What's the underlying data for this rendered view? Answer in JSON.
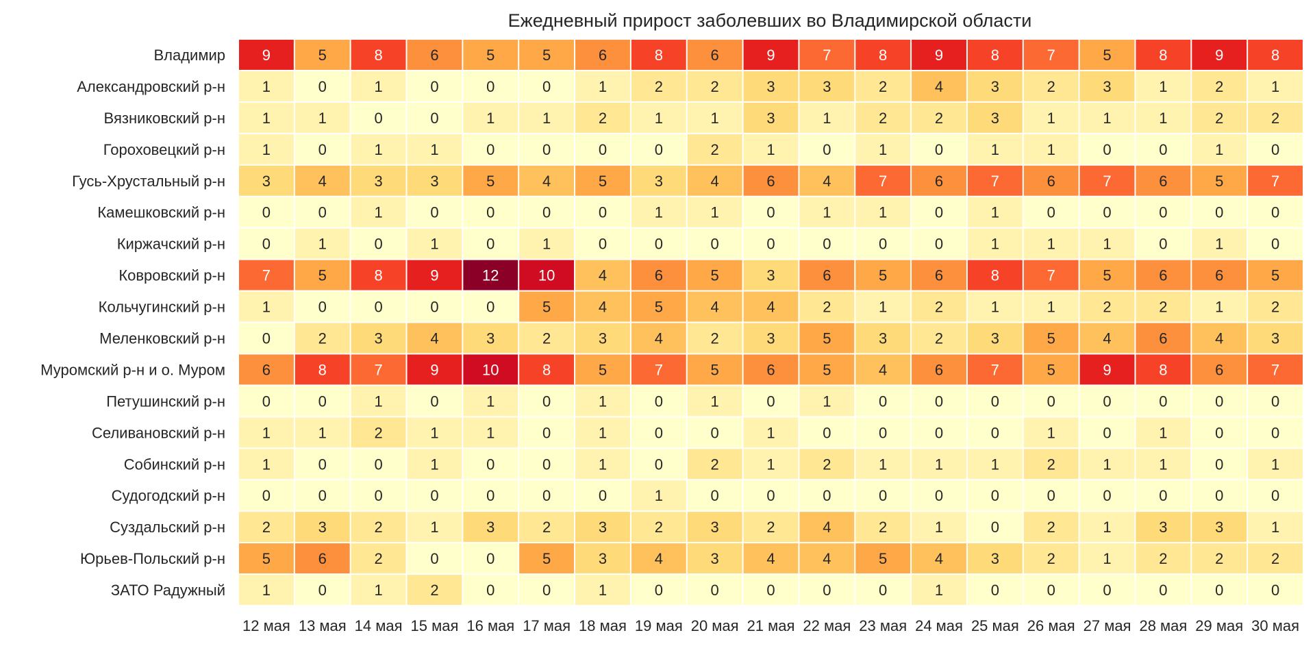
{
  "chart_data": {
    "type": "heatmap",
    "title": "Ежедневный прирост заболевших во Владимирской области",
    "rows": [
      "Владимир",
      "Александровский р-н",
      "Вязниковский р-н",
      "Гороховецкий р-н",
      "Гусь-Хрустальный р-н",
      "Камешковский р-н",
      "Киржачский р-н",
      "Ковровский р-н",
      "Кольчугинский р-н",
      "Меленковский р-н",
      "Муромский р-н и о. Муром",
      "Петушинский р-н",
      "Селивановский р-н",
      "Собинский р-н",
      "Судогодский р-н",
      "Суздальский р-н",
      "Юрьев-Польский р-н",
      "ЗАТО Радужный"
    ],
    "columns": [
      "12 мая",
      "13 мая",
      "14 мая",
      "15 мая",
      "16 мая",
      "17 мая",
      "18 мая",
      "19 мая",
      "20 мая",
      "21 мая",
      "22 мая",
      "23 мая",
      "24 мая",
      "25 мая",
      "26 мая",
      "27 мая",
      "28 мая",
      "29 мая",
      "30 мая"
    ],
    "values": [
      [
        9,
        5,
        8,
        6,
        5,
        5,
        6,
        8,
        6,
        9,
        7,
        8,
        9,
        8,
        7,
        5,
        8,
        9,
        8
      ],
      [
        1,
        0,
        1,
        0,
        0,
        0,
        1,
        2,
        2,
        3,
        3,
        2,
        4,
        3,
        2,
        3,
        1,
        2,
        1
      ],
      [
        1,
        1,
        0,
        0,
        1,
        1,
        2,
        1,
        1,
        3,
        1,
        2,
        2,
        3,
        1,
        1,
        1,
        2,
        2
      ],
      [
        1,
        0,
        1,
        1,
        0,
        0,
        0,
        0,
        2,
        1,
        0,
        1,
        0,
        1,
        1,
        0,
        0,
        1,
        0
      ],
      [
        3,
        4,
        3,
        3,
        5,
        4,
        5,
        3,
        4,
        6,
        4,
        7,
        6,
        7,
        6,
        7,
        6,
        5,
        7
      ],
      [
        0,
        0,
        1,
        0,
        0,
        0,
        0,
        1,
        1,
        0,
        1,
        1,
        0,
        1,
        0,
        0,
        0,
        0,
        0
      ],
      [
        0,
        1,
        0,
        1,
        0,
        1,
        0,
        0,
        0,
        0,
        0,
        0,
        0,
        1,
        1,
        1,
        0,
        1,
        0
      ],
      [
        7,
        5,
        8,
        9,
        12,
        10,
        4,
        6,
        5,
        3,
        6,
        5,
        6,
        8,
        7,
        5,
        6,
        6,
        5
      ],
      [
        1,
        0,
        0,
        0,
        0,
        5,
        4,
        5,
        4,
        4,
        2,
        1,
        2,
        1,
        1,
        2,
        2,
        1,
        2
      ],
      [
        0,
        2,
        3,
        4,
        3,
        2,
        3,
        4,
        2,
        3,
        5,
        3,
        2,
        3,
        5,
        4,
        6,
        4,
        3
      ],
      [
        6,
        8,
        7,
        9,
        10,
        8,
        5,
        7,
        5,
        6,
        5,
        4,
        6,
        7,
        5,
        9,
        8,
        6,
        7
      ],
      [
        0,
        0,
        1,
        0,
        1,
        0,
        1,
        0,
        1,
        0,
        1,
        0,
        0,
        0,
        0,
        0,
        0,
        0,
        0
      ],
      [
        1,
        1,
        2,
        1,
        1,
        0,
        1,
        0,
        0,
        1,
        0,
        0,
        0,
        0,
        1,
        0,
        1,
        0,
        0
      ],
      [
        1,
        0,
        0,
        1,
        0,
        0,
        1,
        0,
        2,
        1,
        2,
        1,
        1,
        1,
        2,
        1,
        1,
        0,
        1
      ],
      [
        0,
        0,
        0,
        0,
        0,
        0,
        0,
        1,
        0,
        0,
        0,
        0,
        0,
        0,
        0,
        0,
        0,
        0,
        0
      ],
      [
        2,
        3,
        2,
        1,
        3,
        2,
        3,
        2,
        3,
        2,
        4,
        2,
        1,
        0,
        2,
        1,
        3,
        3,
        1
      ],
      [
        5,
        6,
        2,
        0,
        0,
        5,
        3,
        4,
        3,
        4,
        4,
        5,
        4,
        3,
        2,
        1,
        2,
        2,
        2
      ],
      [
        1,
        0,
        1,
        2,
        0,
        0,
        1,
        0,
        0,
        0,
        0,
        0,
        1,
        0,
        0,
        0,
        0,
        0,
        0
      ]
    ],
    "vmin": 0,
    "vmax": 12,
    "colormap": "YlOrRd",
    "annotated": true,
    "legend": "none"
  }
}
